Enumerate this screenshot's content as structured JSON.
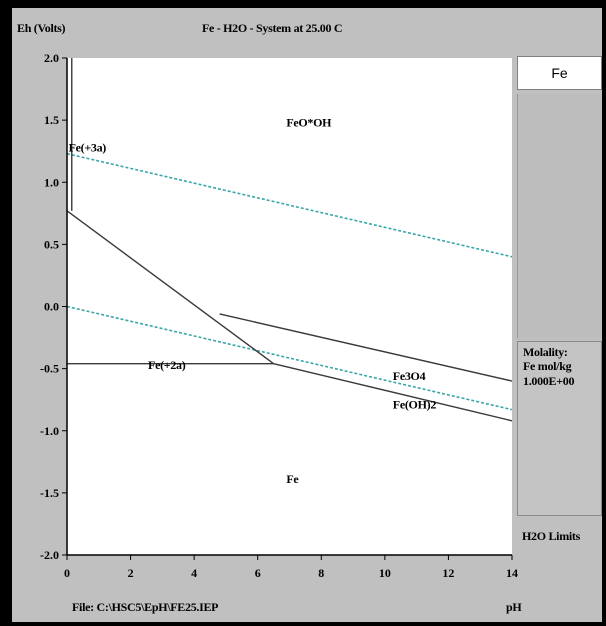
{
  "header": {
    "ylabel": "Eh (Volts)",
    "title": "Fe - H2O - System at 25.00 C"
  },
  "footer": {
    "file": "File: C:\\HSC5\\EpH\\FE25.IEP",
    "xlabel": "pH"
  },
  "sidebar": {
    "element": "Fe",
    "molality_title": "Molality:",
    "molality_unit": "Fe mol/kg",
    "molality_value": "1.000E+00",
    "limits_label": "H2O Limits"
  },
  "colors": {
    "plot_bg": "#ffffff",
    "boundary": "#3a3a3a",
    "water_limit": "#3aa6a6",
    "panel": "#c0c0c0"
  },
  "chart_data": {
    "type": "line",
    "title": "Fe - H2O - System at 25.00 C",
    "xlabel": "pH",
    "ylabel": "Eh (Volts)",
    "xlim": [
      0,
      14
    ],
    "ylim": [
      -2.0,
      2.0
    ],
    "x_ticks": [
      0,
      2,
      4,
      6,
      8,
      10,
      12,
      14
    ],
    "y_ticks": [
      "2.0",
      "1.5",
      "1.0",
      "0.5",
      "0.0",
      "-0.5",
      "-1.0",
      "-1.5",
      "-2.0"
    ],
    "y_tick_values": [
      2.0,
      1.5,
      1.0,
      0.5,
      0.0,
      -0.5,
      -1.0,
      -1.5,
      -2.0
    ],
    "grid": false,
    "field_labels": [
      {
        "text": "FeO*OH",
        "x": 6.9,
        "y": 1.48
      },
      {
        "text": "Fe(+3a)",
        "x": 0.05,
        "y": 1.28
      },
      {
        "text": "Fe(+2a)",
        "x": 2.55,
        "y": -0.47
      },
      {
        "text": "Fe3O4",
        "x": 10.25,
        "y": -0.56
      },
      {
        "text": "Fe(OH)2",
        "x": 10.25,
        "y": -0.79
      },
      {
        "text": "Fe",
        "x": 6.9,
        "y": -1.39
      }
    ],
    "boundaries": [
      {
        "points": [
          [
            0.15,
            2.0
          ],
          [
            0.15,
            0.77
          ]
        ]
      },
      {
        "points": [
          [
            0.0,
            0.77
          ],
          [
            6.5,
            -0.46
          ]
        ]
      },
      {
        "points": [
          [
            0.0,
            -0.46
          ],
          [
            6.5,
            -0.46
          ]
        ]
      },
      {
        "points": [
          [
            4.8,
            -0.06
          ],
          [
            14.0,
            -0.6
          ]
        ]
      },
      {
        "points": [
          [
            6.5,
            -0.46
          ],
          [
            14.0,
            -0.92
          ]
        ]
      }
    ],
    "water_limits": [
      {
        "points": [
          [
            0.0,
            1.23
          ],
          [
            14.0,
            0.4
          ]
        ]
      },
      {
        "points": [
          [
            0.0,
            0.0
          ],
          [
            14.0,
            -0.83
          ]
        ]
      }
    ]
  }
}
